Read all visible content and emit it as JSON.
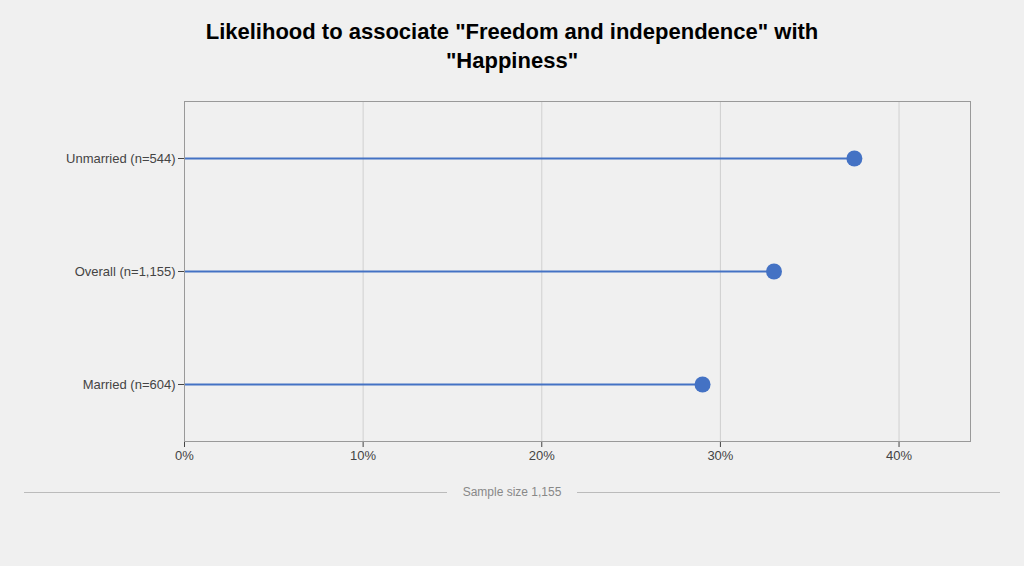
{
  "chart_data": {
    "type": "lollipop",
    "orientation": "horizontal",
    "title": "Likelihood to associate \"Freedom and independence\" with\n\"Happiness\"",
    "caption": "Sample size 1,155",
    "categories": [
      "Married (n=604)",
      "Overall (n=1,155)",
      "Unmarried (n=544)"
    ],
    "values": [
      29.0,
      33.0,
      37.5
    ],
    "color": "#4472c4",
    "xlim": [
      0,
      44
    ],
    "xticks": [
      {
        "value": 0,
        "label": "0%"
      },
      {
        "value": 10,
        "label": "10%"
      },
      {
        "value": 20,
        "label": "20%"
      },
      {
        "value": 30,
        "label": "30%"
      },
      {
        "value": 40,
        "label": "40%"
      }
    ],
    "grid": true
  }
}
